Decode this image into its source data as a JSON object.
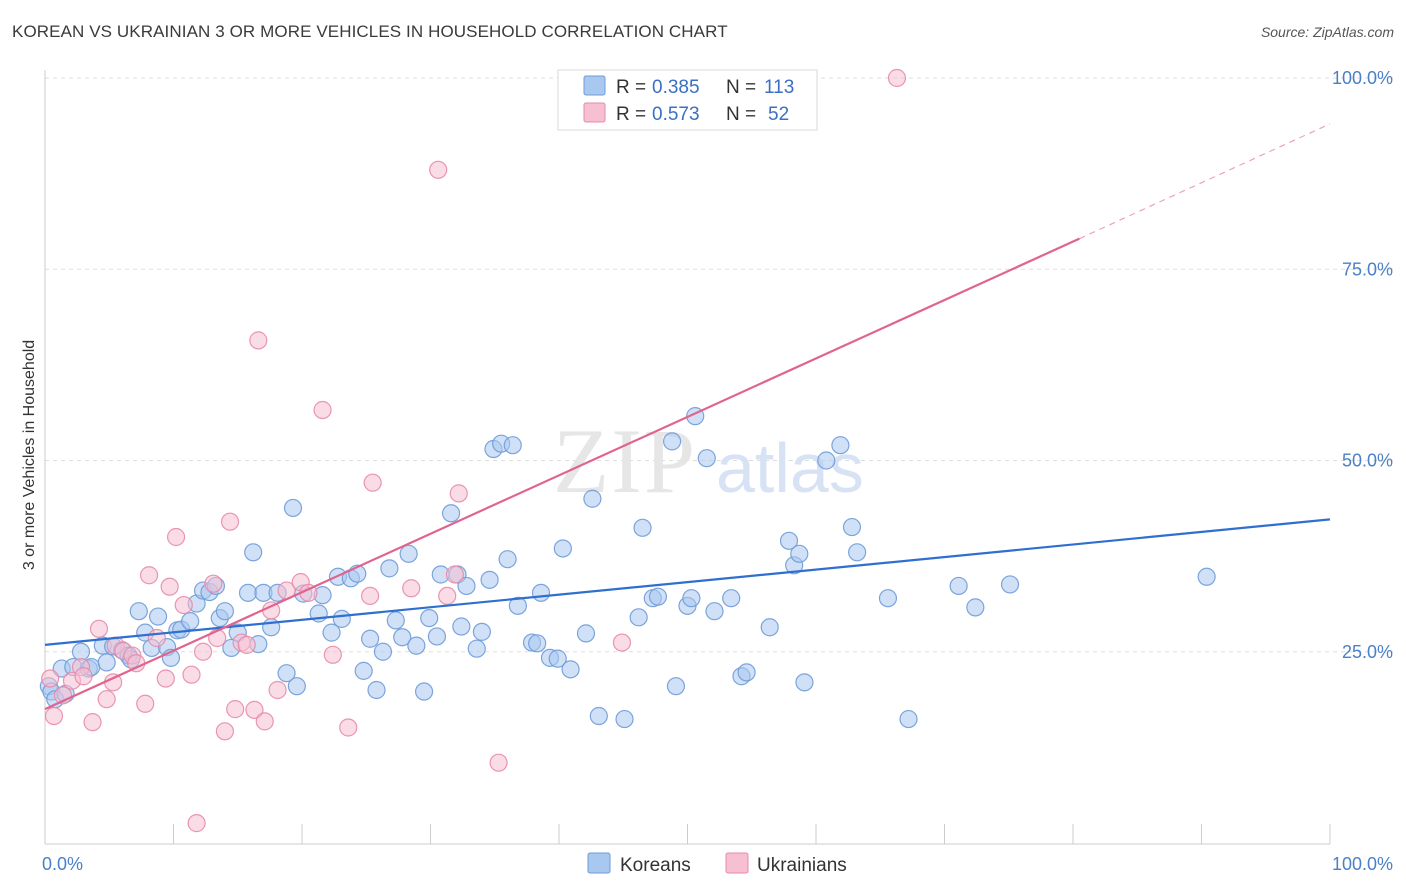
{
  "title": "KOREAN VS UKRAINIAN 3 OR MORE VEHICLES IN HOUSEHOLD CORRELATION CHART",
  "source": "Source: ZipAtlas.com",
  "watermark": {
    "zip": "ZIP",
    "atlas": "atlas"
  },
  "colors": {
    "blue_fill": "#a9c8f0",
    "blue_stroke": "#6f9bd8",
    "blue_line": "#2f6fcf",
    "pink_fill": "#f6bfd2",
    "pink_stroke": "#e88aab",
    "pink_line": "#e0648f",
    "grid": "#dddddd",
    "tick_text": "#4a80c8"
  },
  "legend": {
    "r_label": "R =",
    "n_label": "N =",
    "rows": [
      {
        "series": "Koreans",
        "r": "0.385",
        "n": "113"
      },
      {
        "series": "Ukrainians",
        "r": "0.573",
        "n": "52"
      }
    ]
  },
  "chart_data": {
    "type": "scatter",
    "title": "KOREAN VS UKRAINIAN 3 OR MORE VEHICLES IN HOUSEHOLD CORRELATION CHART",
    "xlabel": "",
    "ylabel": "3 or more Vehicles in Household",
    "xlim": [
      0,
      100
    ],
    "ylim": [
      0,
      103
    ],
    "x_tick_labels": [
      "0.0%",
      "100.0%"
    ],
    "y_ticks": [
      25,
      50,
      75,
      100
    ],
    "y_tick_labels": [
      "25.0%",
      "50.0%",
      "75.0%",
      "100.0%"
    ],
    "legend_position": "bottom",
    "series": [
      {
        "name": "Koreans",
        "r": 0.385,
        "n": 113,
        "trend": {
          "x0": 0,
          "y0": 25.9,
          "x1": 100,
          "y1": 42.3
        },
        "points": [
          [
            0.3,
            20.5
          ],
          [
            0.5,
            19.8
          ],
          [
            0.8,
            18.8
          ],
          [
            1.3,
            22.8
          ],
          [
            1.6,
            19.5
          ],
          [
            2.2,
            23
          ],
          [
            2.8,
            25
          ],
          [
            3.4,
            22.8
          ],
          [
            3.6,
            23
          ],
          [
            4.5,
            25.8
          ],
          [
            4.8,
            23.6
          ],
          [
            5.3,
            25.7
          ],
          [
            6,
            25.2
          ],
          [
            6.5,
            24.5
          ],
          [
            6.7,
            24
          ],
          [
            7.3,
            30.3
          ],
          [
            7.8,
            27.5
          ],
          [
            8.3,
            25.5
          ],
          [
            8.8,
            29.6
          ],
          [
            9.5,
            25.6
          ],
          [
            9.8,
            24.2
          ],
          [
            10.3,
            27.8
          ],
          [
            10.6,
            27.9
          ],
          [
            11.3,
            29
          ],
          [
            11.8,
            31.3
          ],
          [
            12.3,
            33
          ],
          [
            12.8,
            32.8
          ],
          [
            13.3,
            33.6
          ],
          [
            13.6,
            29.4
          ],
          [
            14,
            30.3
          ],
          [
            14.5,
            25.5
          ],
          [
            15,
            27.5
          ],
          [
            15.8,
            32.7
          ],
          [
            16.2,
            38
          ],
          [
            16.6,
            26
          ],
          [
            17,
            32.7
          ],
          [
            17.6,
            28.2
          ],
          [
            18.1,
            32.7
          ],
          [
            18.8,
            22.2
          ],
          [
            19.3,
            43.8
          ],
          [
            19.6,
            20.5
          ],
          [
            20.1,
            32.6
          ],
          [
            21.3,
            30
          ],
          [
            21.6,
            32.4
          ],
          [
            22.3,
            27.5
          ],
          [
            22.8,
            34.8
          ],
          [
            23.1,
            29.3
          ],
          [
            23.8,
            34.6
          ],
          [
            24.3,
            35.2
          ],
          [
            24.8,
            22.5
          ],
          [
            25.3,
            26.7
          ],
          [
            25.8,
            20
          ],
          [
            26.3,
            25
          ],
          [
            26.8,
            35.9
          ],
          [
            27.3,
            29.1
          ],
          [
            27.8,
            26.9
          ],
          [
            28.3,
            37.8
          ],
          [
            28.9,
            25.8
          ],
          [
            29.5,
            19.8
          ],
          [
            29.9,
            29.4
          ],
          [
            30.5,
            27
          ],
          [
            30.8,
            35.1
          ],
          [
            31.6,
            43.1
          ],
          [
            32.1,
            35.1
          ],
          [
            32.4,
            28.3
          ],
          [
            32.8,
            33.6
          ],
          [
            33.6,
            25.4
          ],
          [
            34,
            27.6
          ],
          [
            34.6,
            34.4
          ],
          [
            34.9,
            51.5
          ],
          [
            35.5,
            52.2
          ],
          [
            36,
            37.1
          ],
          [
            36.4,
            52
          ],
          [
            36.8,
            31
          ],
          [
            37.9,
            26.2
          ],
          [
            38.3,
            26.1
          ],
          [
            38.6,
            32.7
          ],
          [
            39.3,
            24.2
          ],
          [
            39.9,
            24.1
          ],
          [
            40.3,
            38.5
          ],
          [
            40.9,
            22.7
          ],
          [
            42.1,
            27.4
          ],
          [
            42.6,
            45
          ],
          [
            43.1,
            16.6
          ],
          [
            45.1,
            16.2
          ],
          [
            46.2,
            29.5
          ],
          [
            46.5,
            41.2
          ],
          [
            47.3,
            32
          ],
          [
            47.7,
            32.2
          ],
          [
            48.8,
            52.5
          ],
          [
            49.1,
            20.5
          ],
          [
            50,
            31
          ],
          [
            50.3,
            32
          ],
          [
            50.6,
            55.8
          ],
          [
            51.5,
            50.3
          ],
          [
            52.1,
            30.3
          ],
          [
            53.4,
            32
          ],
          [
            54.2,
            21.8
          ],
          [
            54.6,
            22.3
          ],
          [
            56.4,
            28.2
          ],
          [
            57.9,
            39.5
          ],
          [
            58.3,
            36.3
          ],
          [
            58.7,
            37.8
          ],
          [
            59.1,
            21
          ],
          [
            60.8,
            50
          ],
          [
            61.9,
            52
          ],
          [
            62.8,
            41.3
          ],
          [
            63.2,
            38
          ],
          [
            65.6,
            32
          ],
          [
            67.2,
            16.2
          ],
          [
            71.1,
            33.6
          ],
          [
            72.4,
            30.8
          ],
          [
            75.1,
            33.8
          ],
          [
            90.4,
            34.8
          ]
        ]
      },
      {
        "name": "Ukrainians",
        "r": 0.573,
        "n": 52,
        "trend": {
          "x0": 0,
          "y0": 17.5,
          "x1": 80.5,
          "y1": 79,
          "dash_x1": 100,
          "dash_y1": 94
        },
        "points": [
          [
            0.4,
            21.5
          ],
          [
            0.7,
            16.6
          ],
          [
            1.4,
            19.3
          ],
          [
            2.1,
            21.2
          ],
          [
            2.8,
            23
          ],
          [
            3,
            21.8
          ],
          [
            3.7,
            15.8
          ],
          [
            4.2,
            28
          ],
          [
            4.8,
            18.8
          ],
          [
            5.3,
            21
          ],
          [
            5.5,
            25.8
          ],
          [
            6.1,
            25.1
          ],
          [
            6.8,
            24.5
          ],
          [
            7.1,
            23.5
          ],
          [
            7.8,
            18.2
          ],
          [
            8.1,
            35
          ],
          [
            8.7,
            26.8
          ],
          [
            9.4,
            21.5
          ],
          [
            9.7,
            33.5
          ],
          [
            10.2,
            40
          ],
          [
            10.8,
            31.1
          ],
          [
            11.4,
            22
          ],
          [
            11.8,
            2.6
          ],
          [
            12.3,
            25
          ],
          [
            13.1,
            33.9
          ],
          [
            13.4,
            26.8
          ],
          [
            14,
            14.6
          ],
          [
            14.4,
            42
          ],
          [
            14.8,
            17.5
          ],
          [
            15.3,
            26.2
          ],
          [
            15.7,
            25.9
          ],
          [
            16.3,
            17.4
          ],
          [
            16.6,
            65.7
          ],
          [
            17.1,
            15.9
          ],
          [
            17.6,
            30.4
          ],
          [
            18.1,
            20
          ],
          [
            18.8,
            33
          ],
          [
            19.9,
            34.1
          ],
          [
            20.5,
            32.7
          ],
          [
            21.6,
            56.6
          ],
          [
            22.4,
            24.6
          ],
          [
            23.6,
            15.1
          ],
          [
            25.3,
            32.3
          ],
          [
            25.5,
            47.1
          ],
          [
            28.5,
            33.3
          ],
          [
            30.6,
            88
          ],
          [
            31.3,
            32.3
          ],
          [
            31.9,
            35.1
          ],
          [
            32.2,
            45.7
          ],
          [
            35.3,
            10.5
          ],
          [
            44.9,
            26.2
          ],
          [
            66.3,
            100
          ]
        ]
      }
    ]
  }
}
